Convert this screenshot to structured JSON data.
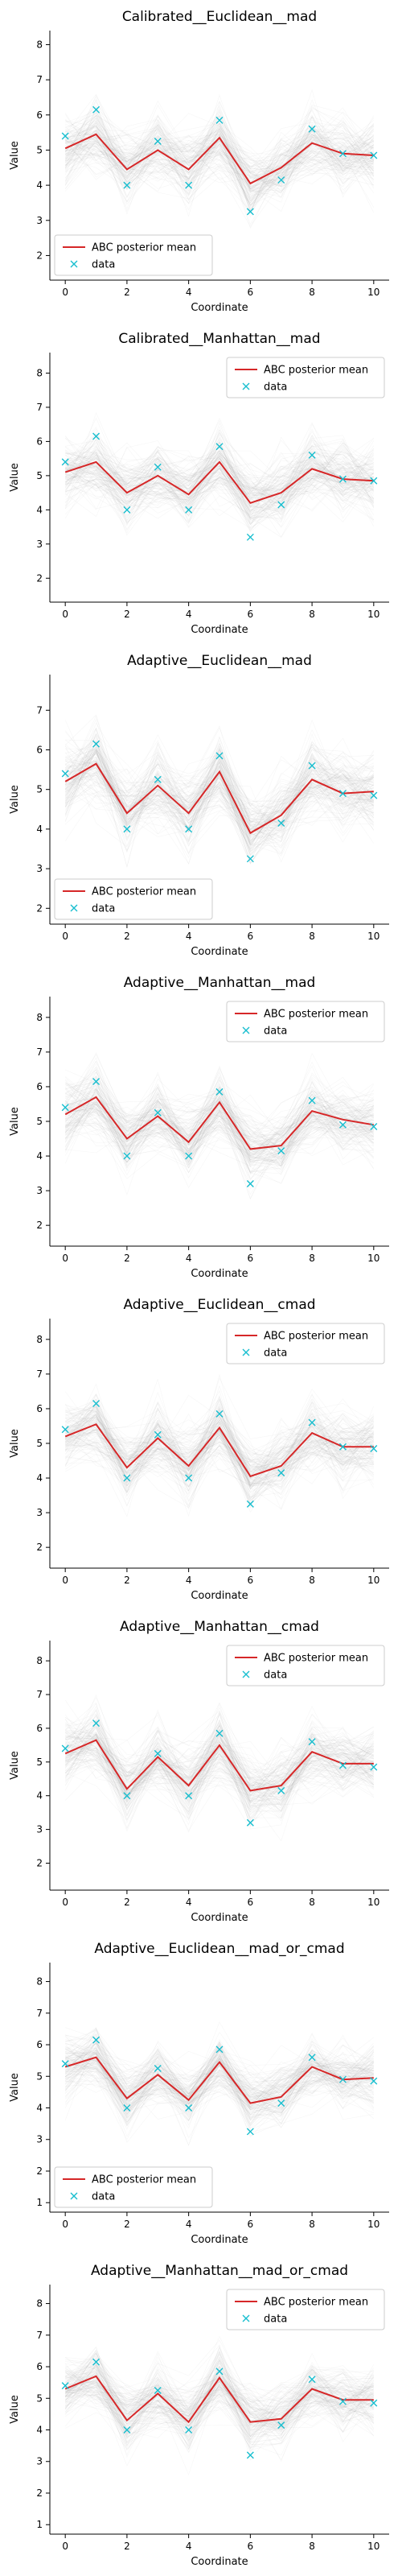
{
  "colors": {
    "mean_line": "#d62728",
    "data_marker": "#17becf",
    "sample_lines": "#9a9a9a",
    "legend_border": "#cccccc"
  },
  "legend": {
    "mean_label": "ABC posterior mean",
    "data_label": "data"
  },
  "chart_data": [
    {
      "type": "line",
      "title": "Calibrated__Euclidean__mad",
      "xlabel": "Coordinate",
      "ylabel": "Value",
      "xticks": [
        0,
        2,
        4,
        6,
        8,
        10
      ],
      "yticks": [
        2,
        3,
        4,
        5,
        6,
        7,
        8
      ],
      "xlim": [
        -0.5,
        10.5
      ],
      "ylim": [
        1.3,
        8.4
      ],
      "legend_loc": "lower-left",
      "x": [
        0,
        1,
        2,
        3,
        4,
        5,
        6,
        7,
        8,
        9,
        10
      ],
      "series": [
        {
          "name": "ABC posterior mean",
          "values": [
            5.05,
            5.45,
            4.45,
            5.0,
            4.45,
            5.35,
            4.05,
            4.5,
            5.2,
            4.9,
            4.85
          ]
        },
        {
          "name": "data",
          "values": [
            5.4,
            6.15,
            4.0,
            5.25,
            4.0,
            5.85,
            3.25,
            4.15,
            5.6,
            4.9,
            4.85
          ]
        }
      ]
    },
    {
      "type": "line",
      "title": "Calibrated__Manhattan__mad",
      "xlabel": "Coordinate",
      "ylabel": "Value",
      "xticks": [
        0,
        2,
        4,
        6,
        8,
        10
      ],
      "yticks": [
        2,
        3,
        4,
        5,
        6,
        7,
        8
      ],
      "xlim": [
        -0.5,
        10.5
      ],
      "ylim": [
        1.3,
        8.6
      ],
      "legend_loc": "upper-right",
      "x": [
        0,
        1,
        2,
        3,
        4,
        5,
        6,
        7,
        8,
        9,
        10
      ],
      "series": [
        {
          "name": "ABC posterior mean",
          "values": [
            5.1,
            5.4,
            4.5,
            5.0,
            4.45,
            5.4,
            4.2,
            4.5,
            5.2,
            4.9,
            4.85
          ]
        },
        {
          "name": "data",
          "values": [
            5.4,
            6.15,
            4.0,
            5.25,
            4.0,
            5.85,
            3.2,
            4.15,
            5.6,
            4.9,
            4.85
          ]
        }
      ]
    },
    {
      "type": "line",
      "title": "Adaptive__Euclidean__mad",
      "xlabel": "Coordinate",
      "ylabel": "Value",
      "xticks": [
        0,
        2,
        4,
        6,
        8,
        10
      ],
      "yticks": [
        2,
        3,
        4,
        5,
        6,
        7
      ],
      "xlim": [
        -0.5,
        10.5
      ],
      "ylim": [
        1.6,
        7.9
      ],
      "legend_loc": "lower-left",
      "x": [
        0,
        1,
        2,
        3,
        4,
        5,
        6,
        7,
        8,
        9,
        10
      ],
      "series": [
        {
          "name": "ABC posterior mean",
          "values": [
            5.2,
            5.65,
            4.4,
            5.1,
            4.4,
            5.45,
            3.9,
            4.35,
            5.25,
            4.9,
            4.95
          ]
        },
        {
          "name": "data",
          "values": [
            5.4,
            6.15,
            4.0,
            5.25,
            4.0,
            5.85,
            3.25,
            4.15,
            5.6,
            4.9,
            4.85
          ]
        }
      ]
    },
    {
      "type": "line",
      "title": "Adaptive__Manhattan__mad",
      "xlabel": "Coordinate",
      "ylabel": "Value",
      "xticks": [
        0,
        2,
        4,
        6,
        8,
        10
      ],
      "yticks": [
        2,
        3,
        4,
        5,
        6,
        7,
        8
      ],
      "xlim": [
        -0.5,
        10.5
      ],
      "ylim": [
        1.4,
        8.6
      ],
      "legend_loc": "upper-right",
      "x": [
        0,
        1,
        2,
        3,
        4,
        5,
        6,
        7,
        8,
        9,
        10
      ],
      "series": [
        {
          "name": "ABC posterior mean",
          "values": [
            5.2,
            5.7,
            4.5,
            5.15,
            4.4,
            5.55,
            4.2,
            4.3,
            5.3,
            5.05,
            4.9
          ]
        },
        {
          "name": "data",
          "values": [
            5.4,
            6.15,
            4.0,
            5.25,
            4.0,
            5.85,
            3.2,
            4.15,
            5.6,
            4.9,
            4.85
          ]
        }
      ]
    },
    {
      "type": "line",
      "title": "Adaptive__Euclidean__cmad",
      "xlabel": "Coordinate",
      "ylabel": "Value",
      "xticks": [
        0,
        2,
        4,
        6,
        8,
        10
      ],
      "yticks": [
        2,
        3,
        4,
        5,
        6,
        7,
        8
      ],
      "xlim": [
        -0.5,
        10.5
      ],
      "ylim": [
        1.4,
        8.6
      ],
      "legend_loc": "upper-right",
      "x": [
        0,
        1,
        2,
        3,
        4,
        5,
        6,
        7,
        8,
        9,
        10
      ],
      "series": [
        {
          "name": "ABC posterior mean",
          "values": [
            5.2,
            5.55,
            4.3,
            5.15,
            4.35,
            5.45,
            4.05,
            4.35,
            5.3,
            4.9,
            4.9
          ]
        },
        {
          "name": "data",
          "values": [
            5.4,
            6.15,
            4.0,
            5.25,
            4.0,
            5.85,
            3.25,
            4.15,
            5.6,
            4.9,
            4.85
          ]
        }
      ]
    },
    {
      "type": "line",
      "title": "Adaptive__Manhattan__cmad",
      "xlabel": "Coordinate",
      "ylabel": "Value",
      "xticks": [
        0,
        2,
        4,
        6,
        8,
        10
      ],
      "yticks": [
        2,
        3,
        4,
        5,
        6,
        7,
        8
      ],
      "xlim": [
        -0.5,
        10.5
      ],
      "ylim": [
        1.2,
        8.6
      ],
      "legend_loc": "upper-right",
      "x": [
        0,
        1,
        2,
        3,
        4,
        5,
        6,
        7,
        8,
        9,
        10
      ],
      "series": [
        {
          "name": "ABC posterior mean",
          "values": [
            5.25,
            5.65,
            4.2,
            5.15,
            4.3,
            5.5,
            4.15,
            4.3,
            5.3,
            4.95,
            4.95
          ]
        },
        {
          "name": "data",
          "values": [
            5.4,
            6.15,
            4.0,
            5.25,
            4.0,
            5.85,
            3.2,
            4.15,
            5.6,
            4.9,
            4.85
          ]
        }
      ]
    },
    {
      "type": "line",
      "title": "Adaptive__Euclidean__mad_or_cmad",
      "xlabel": "Coordinate",
      "ylabel": "Value",
      "xticks": [
        0,
        2,
        4,
        6,
        8,
        10
      ],
      "yticks": [
        1,
        2,
        3,
        4,
        5,
        6,
        7,
        8
      ],
      "xlim": [
        -0.5,
        10.5
      ],
      "ylim": [
        0.7,
        8.6
      ],
      "legend_loc": "lower-left",
      "x": [
        0,
        1,
        2,
        3,
        4,
        5,
        6,
        7,
        8,
        9,
        10
      ],
      "series": [
        {
          "name": "ABC posterior mean",
          "values": [
            5.3,
            5.6,
            4.3,
            5.05,
            4.25,
            5.45,
            4.15,
            4.35,
            5.3,
            4.9,
            4.95
          ]
        },
        {
          "name": "data",
          "values": [
            5.4,
            6.15,
            4.0,
            5.25,
            4.0,
            5.85,
            3.25,
            4.15,
            5.6,
            4.9,
            4.85
          ]
        }
      ]
    },
    {
      "type": "line",
      "title": "Adaptive__Manhattan__mad_or_cmad",
      "xlabel": "Coordinate",
      "ylabel": "Value",
      "xticks": [
        0,
        2,
        4,
        6,
        8,
        10
      ],
      "yticks": [
        1,
        2,
        3,
        4,
        5,
        6,
        7,
        8
      ],
      "xlim": [
        -0.5,
        10.5
      ],
      "ylim": [
        0.7,
        8.6
      ],
      "legend_loc": "upper-right",
      "x": [
        0,
        1,
        2,
        3,
        4,
        5,
        6,
        7,
        8,
        9,
        10
      ],
      "series": [
        {
          "name": "ABC posterior mean",
          "values": [
            5.3,
            5.7,
            4.3,
            5.15,
            4.25,
            5.65,
            4.25,
            4.35,
            5.3,
            4.95,
            4.95
          ]
        },
        {
          "name": "data",
          "values": [
            5.4,
            6.15,
            4.0,
            5.25,
            4.0,
            5.85,
            3.2,
            4.15,
            5.6,
            4.9,
            4.85
          ]
        }
      ]
    }
  ]
}
